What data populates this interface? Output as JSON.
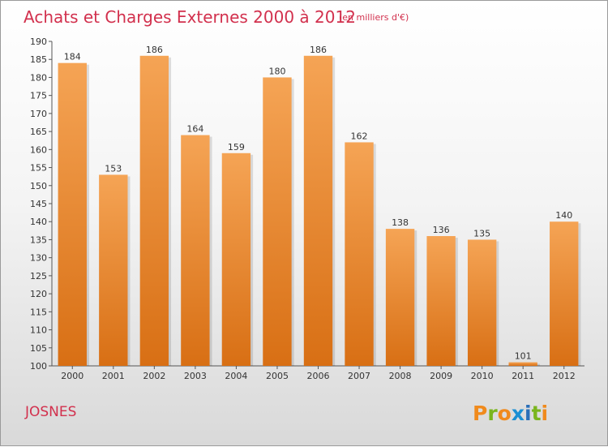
{
  "chart_data": {
    "type": "bar",
    "title": "Achats et Charges Externes 2000 à 2012",
    "subtitle": "(en milliers d'€)",
    "categories": [
      "2000",
      "2001",
      "2002",
      "2003",
      "2004",
      "2005",
      "2006",
      "2007",
      "2008",
      "2009",
      "2010",
      "2011",
      "2012"
    ],
    "values": [
      184,
      153,
      186,
      164,
      159,
      180,
      186,
      162,
      138,
      136,
      135,
      101,
      140
    ],
    "ylim": [
      100,
      190
    ],
    "ytick_step": 5,
    "grid": false,
    "bar_color": "#f0922e",
    "bar_color_dark": "#d86f14"
  },
  "place": "JOSNES",
  "brand": {
    "logo_text": "Proxiti",
    "letters": [
      "P",
      "r",
      "o",
      "x",
      "i",
      "t",
      "i"
    ],
    "letter_colors": [
      "#f08a1c",
      "#7ab51d",
      "#f08a1c",
      "#1a8fd3",
      "#2a6fb8",
      "#7ab51d",
      "#f08a1c"
    ]
  }
}
